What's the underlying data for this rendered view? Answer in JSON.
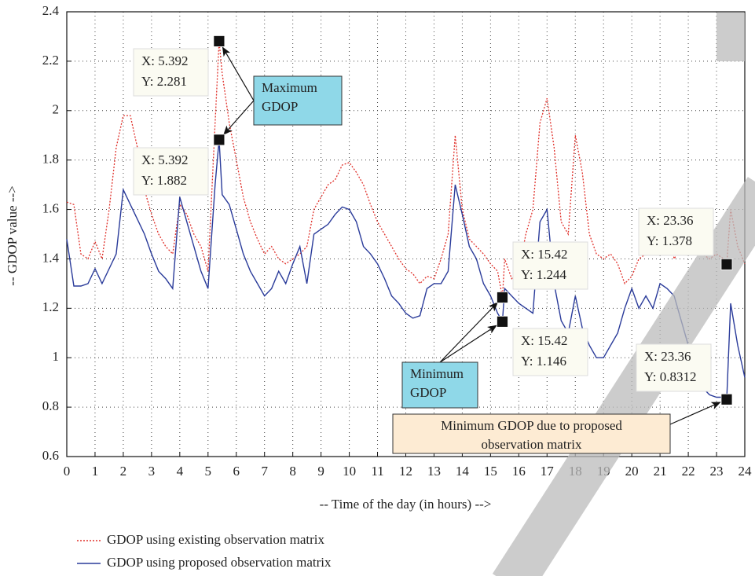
{
  "chart_data": {
    "type": "line",
    "xlabel": "-- Time of the day (in hours) -->",
    "ylabel": "-- GDOP value -->",
    "xlim": [
      0,
      24
    ],
    "ylim": [
      0.6,
      2.4
    ],
    "xticks": [
      0,
      1,
      2,
      3,
      4,
      5,
      6,
      7,
      8,
      9,
      10,
      11,
      12,
      13,
      14,
      15,
      16,
      17,
      18,
      19,
      20,
      21,
      22,
      23,
      24
    ],
    "yticks": [
      0.6,
      0.8,
      1,
      1.2,
      1.4,
      1.6,
      1.8,
      2,
      2.2,
      2.4
    ],
    "grid": true,
    "x": [
      0,
      0.25,
      0.5,
      0.75,
      1,
      1.25,
      1.5,
      1.75,
      2,
      2.25,
      2.5,
      2.75,
      3,
      3.25,
      3.5,
      3.75,
      4,
      4.25,
      4.5,
      4.75,
      5,
      5.25,
      5.392,
      5.5,
      5.75,
      6,
      6.25,
      6.5,
      6.75,
      7,
      7.25,
      7.5,
      7.75,
      8,
      8.25,
      8.5,
      8.75,
      9,
      9.25,
      9.5,
      9.75,
      10,
      10.25,
      10.5,
      10.75,
      11,
      11.25,
      11.5,
      11.75,
      12,
      12.25,
      12.5,
      12.75,
      13,
      13.25,
      13.5,
      13.75,
      14,
      14.25,
      14.5,
      14.75,
      15,
      15.25,
      15.42,
      15.5,
      15.75,
      16,
      16.25,
      16.5,
      16.75,
      17,
      17.25,
      17.5,
      17.75,
      18,
      18.25,
      18.5,
      18.75,
      19,
      19.25,
      19.5,
      19.75,
      20,
      20.25,
      20.5,
      20.75,
      21,
      21.25,
      21.5,
      21.75,
      22,
      22.25,
      22.5,
      22.75,
      23,
      23.25,
      23.36,
      23.5,
      23.75,
      24
    ],
    "series": [
      {
        "name": "GDOP using existing observation matrix",
        "color": "#e0302a",
        "style": "dotted",
        "values": [
          1.63,
          1.62,
          1.42,
          1.4,
          1.47,
          1.4,
          1.6,
          1.85,
          1.98,
          1.98,
          1.85,
          1.68,
          1.58,
          1.5,
          1.45,
          1.42,
          1.62,
          1.58,
          1.5,
          1.45,
          1.35,
          1.95,
          2.281,
          2.15,
          1.95,
          1.8,
          1.65,
          1.55,
          1.48,
          1.42,
          1.45,
          1.4,
          1.38,
          1.4,
          1.42,
          1.45,
          1.6,
          1.65,
          1.7,
          1.72,
          1.78,
          1.79,
          1.75,
          1.7,
          1.62,
          1.55,
          1.5,
          1.45,
          1.4,
          1.36,
          1.34,
          1.3,
          1.33,
          1.32,
          1.4,
          1.5,
          1.9,
          1.6,
          1.48,
          1.45,
          1.42,
          1.38,
          1.35,
          1.244,
          1.4,
          1.32,
          1.35,
          1.5,
          1.6,
          1.95,
          2.05,
          1.85,
          1.55,
          1.5,
          1.9,
          1.75,
          1.5,
          1.42,
          1.4,
          1.42,
          1.38,
          1.3,
          1.33,
          1.4,
          1.42,
          1.45,
          1.5,
          1.55,
          1.4,
          1.45,
          1.5,
          1.45,
          1.42,
          1.4,
          1.42,
          1.4,
          1.378,
          1.6,
          1.45,
          1.38
        ]
      },
      {
        "name": "GDOP using proposed observation matrix",
        "color": "#2a3b9a",
        "style": "solid",
        "values": [
          1.48,
          1.29,
          1.29,
          1.3,
          1.36,
          1.3,
          1.36,
          1.42,
          1.68,
          1.62,
          1.56,
          1.5,
          1.42,
          1.35,
          1.32,
          1.28,
          1.65,
          1.55,
          1.45,
          1.35,
          1.28,
          1.7,
          1.882,
          1.66,
          1.62,
          1.52,
          1.42,
          1.35,
          1.3,
          1.25,
          1.28,
          1.35,
          1.3,
          1.38,
          1.45,
          1.3,
          1.5,
          1.52,
          1.54,
          1.58,
          1.61,
          1.6,
          1.55,
          1.45,
          1.42,
          1.38,
          1.32,
          1.25,
          1.22,
          1.18,
          1.16,
          1.17,
          1.28,
          1.3,
          1.3,
          1.35,
          1.7,
          1.58,
          1.45,
          1.4,
          1.3,
          1.25,
          1.18,
          1.146,
          1.28,
          1.25,
          1.22,
          1.2,
          1.18,
          1.55,
          1.6,
          1.3,
          1.15,
          1.1,
          1.25,
          1.12,
          1.05,
          1,
          1,
          1.05,
          1.1,
          1.2,
          1.28,
          1.2,
          1.25,
          1.2,
          1.3,
          1.28,
          1.25,
          1.15,
          1.05,
          0.95,
          0.88,
          0.85,
          0.84,
          0.84,
          0.8312,
          1.22,
          1.05,
          0.92
        ]
      }
    ],
    "datatips": [
      {
        "x": 5.392,
        "y": 2.281,
        "x_label": "X: 5.392",
        "y_label": "Y: 2.281"
      },
      {
        "x": 5.392,
        "y": 1.882,
        "x_label": "X: 5.392",
        "y_label": "Y: 1.882"
      },
      {
        "x": 15.42,
        "y": 1.244,
        "x_label": "X: 15.42",
        "y_label": "Y: 1.244"
      },
      {
        "x": 15.42,
        "y": 1.146,
        "x_label": "X: 15.42",
        "y_label": "Y: 1.146"
      },
      {
        "x": 23.36,
        "y": 1.378,
        "x_label": "X: 23.36",
        "y_label": "Y: 1.378"
      },
      {
        "x": 23.36,
        "y": 0.8312,
        "x_label": "X: 23.36",
        "y_label": "Y: 0.8312"
      }
    ],
    "annotations": [
      {
        "lines": [
          "Maximum",
          "GDOP"
        ]
      },
      {
        "lines": [
          "Minimum",
          "GDOP"
        ]
      },
      {
        "lines": [
          "Minimum GDOP due to proposed",
          "observation matrix"
        ]
      }
    ]
  }
}
